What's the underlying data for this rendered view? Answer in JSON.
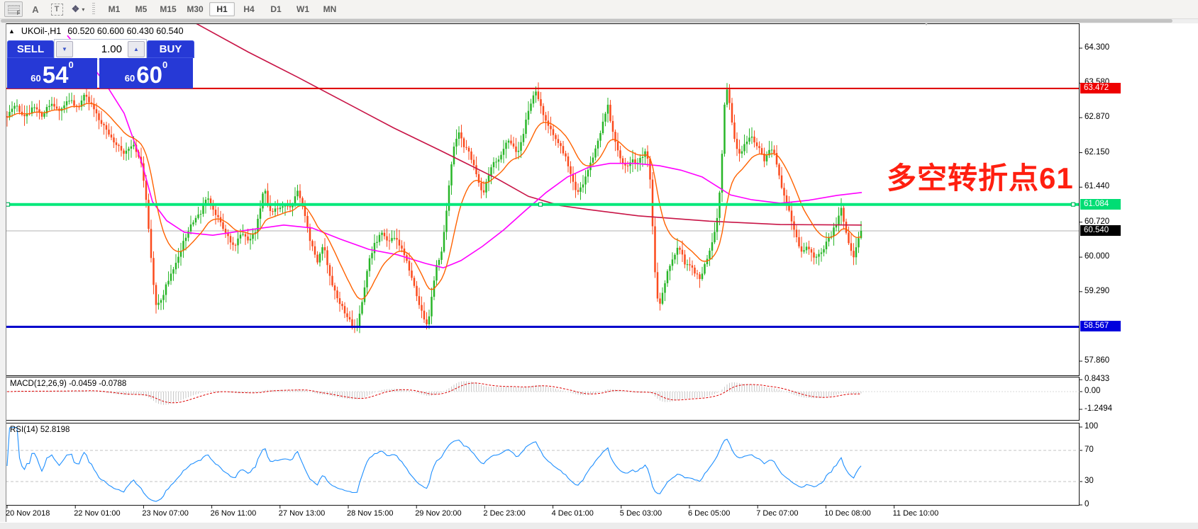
{
  "toolbar": {
    "icons": {
      "indicators_f": "F",
      "annotate_a": "A",
      "text_tool": "T",
      "objects": "❖",
      "caret": "▾"
    },
    "timeframes": [
      "M1",
      "M5",
      "M15",
      "M30",
      "H1",
      "H4",
      "D1",
      "W1",
      "MN"
    ],
    "active_timeframe": "H1"
  },
  "window": {
    "title_marker": "▲",
    "symbol": "UKOil-,H1",
    "ohlc": "60.520 60.600 60.430 60.540",
    "shift_marker": "▼"
  },
  "trade_panel": {
    "sell_label": "SELL",
    "buy_label": "BUY",
    "volume": "1.00",
    "spin_down": "▼",
    "spin_up": "▲",
    "sell_price": {
      "small": "60",
      "big": "54",
      "sup": "0"
    },
    "buy_price": {
      "small": "60",
      "big": "60",
      "sup": "0"
    }
  },
  "chart_data": {
    "type": "candlestick",
    "symbol": "UKOil-",
    "timeframe": "H1",
    "title": "UKOil-,H1 60.520 60.600 60.430 60.540",
    "price_axis_ticks": [
      {
        "v": 64.3,
        "label": "64.300"
      },
      {
        "v": 63.58,
        "label": "63.580"
      },
      {
        "v": 62.87,
        "label": "62.870"
      },
      {
        "v": 62.15,
        "label": "62.150"
      },
      {
        "v": 61.44,
        "label": "61.440"
      },
      {
        "v": 60.72,
        "label": "60.720"
      },
      {
        "v": 60.0,
        "label": "60.000"
      },
      {
        "v": 59.29,
        "label": "59.290"
      },
      {
        "v": 57.86,
        "label": "57.860"
      }
    ],
    "time_axis_labels": [
      "20 Nov 2018",
      "22 Nov 01:00",
      "23 Nov 07:00",
      "26 Nov 11:00",
      "27 Nov 13:00",
      "28 Nov 15:00",
      "29 Nov 20:00",
      "2 Dec 23:00",
      "4 Dec 01:00",
      "5 Dec 03:00",
      "6 Dec 05:00",
      "7 Dec 07:00",
      "10 Dec 08:00",
      "11 Dec 10:00"
    ],
    "levels": [
      {
        "price": 63.472,
        "label": "63.472",
        "color": "#dd0000",
        "width": 2,
        "label_bg": "#ee0000",
        "selected": false
      },
      {
        "price": 61.084,
        "label": "61.084",
        "color": "#00e87a",
        "width": 4,
        "label_bg": "#00dd74",
        "selected": true
      },
      {
        "price": 58.567,
        "label": "58.567",
        "color": "#0000cc",
        "width": 3,
        "label_bg": "#0000dd",
        "selected": false
      }
    ],
    "current_price": {
      "value": 60.54,
      "label": "60.540"
    },
    "price_path": [
      [
        10,
        62.9
      ],
      [
        22,
        63.15
      ],
      [
        35,
        62.85
      ],
      [
        48,
        63.1
      ],
      [
        60,
        62.9
      ],
      [
        72,
        63.2
      ],
      [
        85,
        63.0
      ],
      [
        98,
        63.25
      ],
      [
        110,
        63.05
      ],
      [
        118,
        63.35
      ],
      [
        128,
        63.15
      ],
      [
        140,
        62.85
      ],
      [
        152,
        62.55
      ],
      [
        164,
        62.3
      ],
      [
        176,
        62.15
      ],
      [
        188,
        62.35
      ],
      [
        198,
        62.0
      ],
      [
        206,
        61.2
      ],
      [
        212,
        60.2
      ],
      [
        217,
        59.3
      ],
      [
        221,
        58.95
      ],
      [
        228,
        59.15
      ],
      [
        236,
        59.5
      ],
      [
        246,
        59.75
      ],
      [
        258,
        60.3
      ],
      [
        270,
        60.7
      ],
      [
        282,
        60.9
      ],
      [
        292,
        61.25
      ],
      [
        300,
        61.0
      ],
      [
        310,
        60.75
      ],
      [
        320,
        60.45
      ],
      [
        330,
        60.2
      ],
      [
        340,
        60.5
      ],
      [
        350,
        60.35
      ],
      [
        360,
        60.55
      ],
      [
        368,
        61.1
      ],
      [
        373,
        61.45
      ],
      [
        379,
        60.95
      ],
      [
        390,
        61.0
      ],
      [
        400,
        61.1
      ],
      [
        410,
        61.0
      ],
      [
        420,
        61.35
      ],
      [
        428,
        61.0
      ],
      [
        438,
        60.3
      ],
      [
        448,
        59.9
      ],
      [
        456,
        60.25
      ],
      [
        464,
        59.65
      ],
      [
        472,
        59.3
      ],
      [
        480,
        59.05
      ],
      [
        489,
        58.8
      ],
      [
        496,
        58.62
      ],
      [
        503,
        58.52
      ],
      [
        511,
        59.15
      ],
      [
        519,
        59.85
      ],
      [
        528,
        60.25
      ],
      [
        538,
        60.5
      ],
      [
        548,
        60.3
      ],
      [
        558,
        60.42
      ],
      [
        566,
        60.18
      ],
      [
        574,
        59.9
      ],
      [
        582,
        59.5
      ],
      [
        590,
        59.1
      ],
      [
        597,
        58.8
      ],
      [
        603,
        58.56
      ],
      [
        609,
        59.2
      ],
      [
        616,
        59.85
      ],
      [
        623,
        60.15
      ],
      [
        629,
        60.9
      ],
      [
        635,
        61.8
      ],
      [
        641,
        62.4
      ],
      [
        648,
        62.6
      ],
      [
        654,
        62.3
      ],
      [
        661,
        62.15
      ],
      [
        668,
        61.85
      ],
      [
        674,
        61.55
      ],
      [
        681,
        61.3
      ],
      [
        688,
        61.65
      ],
      [
        695,
        61.9
      ],
      [
        702,
        62.0
      ],
      [
        709,
        62.2
      ],
      [
        716,
        62.4
      ],
      [
        723,
        62.28
      ],
      [
        730,
        62.15
      ],
      [
        737,
        62.5
      ],
      [
        744,
        62.95
      ],
      [
        751,
        63.3
      ],
      [
        756,
        63.45
      ],
      [
        762,
        63.1
      ],
      [
        769,
        62.85
      ],
      [
        776,
        62.65
      ],
      [
        784,
        62.45
      ],
      [
        792,
        62.25
      ],
      [
        800,
        61.95
      ],
      [
        807,
        61.6
      ],
      [
        814,
        61.3
      ],
      [
        821,
        61.5
      ],
      [
        829,
        61.8
      ],
      [
        837,
        62.1
      ],
      [
        845,
        62.5
      ],
      [
        852,
        62.9
      ],
      [
        857,
        63.1
      ],
      [
        863,
        62.65
      ],
      [
        869,
        62.3
      ],
      [
        876,
        62.0
      ],
      [
        883,
        61.8
      ],
      [
        891,
        62.0
      ],
      [
        899,
        61.9
      ],
      [
        906,
        62.1
      ],
      [
        912,
        62.2
      ],
      [
        917,
        61.5
      ],
      [
        921,
        60.4
      ],
      [
        925,
        59.3
      ],
      [
        929,
        58.92
      ],
      [
        934,
        59.3
      ],
      [
        941,
        59.7
      ],
      [
        949,
        60.0
      ],
      [
        957,
        60.2
      ],
      [
        965,
        59.9
      ],
      [
        973,
        59.8
      ],
      [
        981,
        59.68
      ],
      [
        987,
        59.5
      ],
      [
        993,
        59.8
      ],
      [
        1000,
        60.1
      ],
      [
        1007,
        60.5
      ],
      [
        1013,
        60.95
      ],
      [
        1018,
        62.1
      ],
      [
        1022,
        63.25
      ],
      [
        1026,
        63.55
      ],
      [
        1030,
        62.95
      ],
      [
        1035,
        62.45
      ],
      [
        1041,
        62.1
      ],
      [
        1047,
        62.2
      ],
      [
        1053,
        62.4
      ],
      [
        1059,
        62.5
      ],
      [
        1065,
        62.3
      ],
      [
        1071,
        62.2
      ],
      [
        1077,
        62.0
      ],
      [
        1083,
        62.15
      ],
      [
        1089,
        62.25
      ],
      [
        1095,
        61.9
      ],
      [
        1101,
        61.5
      ],
      [
        1107,
        61.2
      ],
      [
        1113,
        60.9
      ],
      [
        1119,
        60.6
      ],
      [
        1125,
        60.3
      ],
      [
        1131,
        60.1
      ],
      [
        1138,
        60.2
      ],
      [
        1145,
        60.05
      ],
      [
        1152,
        59.95
      ],
      [
        1159,
        60.15
      ],
      [
        1166,
        60.3
      ],
      [
        1173,
        60.5
      ],
      [
        1180,
        60.72
      ],
      [
        1186,
        61.0
      ],
      [
        1192,
        60.6
      ],
      [
        1198,
        60.2
      ],
      [
        1204,
        60.0
      ],
      [
        1210,
        60.35
      ],
      [
        1215,
        60.54
      ]
    ],
    "ma_mid_path": [
      [
        95,
        64.56
      ],
      [
        120,
        64.13
      ],
      [
        150,
        63.54
      ],
      [
        175,
        62.96
      ],
      [
        200,
        61.94
      ],
      [
        215,
        61.14
      ],
      [
        235,
        60.75
      ],
      [
        260,
        60.51
      ],
      [
        300,
        60.45
      ],
      [
        350,
        60.56
      ],
      [
        400,
        60.66
      ],
      [
        440,
        60.6
      ],
      [
        480,
        60.37
      ],
      [
        520,
        60.16
      ],
      [
        560,
        60.05
      ],
      [
        600,
        59.87
      ],
      [
        625,
        59.78
      ],
      [
        650,
        59.93
      ],
      [
        680,
        60.22
      ],
      [
        710,
        60.56
      ],
      [
        740,
        60.95
      ],
      [
        770,
        61.33
      ],
      [
        800,
        61.65
      ],
      [
        830,
        61.85
      ],
      [
        860,
        61.93
      ],
      [
        895,
        61.93
      ],
      [
        930,
        61.88
      ],
      [
        960,
        61.79
      ],
      [
        990,
        61.65
      ],
      [
        1017,
        61.4
      ],
      [
        1030,
        61.28
      ],
      [
        1060,
        61.18
      ],
      [
        1100,
        61.11
      ],
      [
        1140,
        61.17
      ],
      [
        1180,
        61.27
      ],
      [
        1215,
        61.33
      ]
    ],
    "ma_slow_path": [
      [
        275,
        64.82
      ],
      [
        350,
        64.22
      ],
      [
        420,
        63.7
      ],
      [
        490,
        63.16
      ],
      [
        555,
        62.66
      ],
      [
        620,
        62.2
      ],
      [
        660,
        61.91
      ],
      [
        700,
        61.62
      ],
      [
        745,
        61.25
      ],
      [
        790,
        61.06
      ],
      [
        830,
        60.98
      ],
      [
        900,
        60.85
      ],
      [
        1000,
        60.74
      ],
      [
        1100,
        60.67
      ],
      [
        1215,
        60.66
      ]
    ],
    "indicators": {
      "macd": {
        "label": "MACD(12,26,9)",
        "values": "-0.0459 -0.0788",
        "axis_ticks": [
          {
            "v": 0.8433,
            "label": "0.8433"
          },
          {
            "v": 0,
            "label": "0.00"
          },
          {
            "v": -1.2494,
            "label": "-1.2494"
          }
        ]
      },
      "rsi": {
        "label": "RSI(14)",
        "value": "52.8198",
        "axis_ticks": [
          {
            "v": 100,
            "label": "100"
          },
          {
            "v": 70,
            "label": "70"
          },
          {
            "v": 30,
            "label": "30"
          },
          {
            "v": 0,
            "label": "0"
          }
        ],
        "levels": [
          70,
          30
        ]
      }
    },
    "annotation": {
      "text": "多空转折点61",
      "color": "#ff1f10"
    },
    "colors": {
      "up": "#28b628",
      "down": "#fb4a1d",
      "ma_fast": "#ff6200",
      "ma_mid": "#ff00ff",
      "ma_slow": "#c81446",
      "macd_hist": "#c9c9c9",
      "macd_signal": "#dd0000",
      "rsi": "#1e8fff"
    }
  }
}
